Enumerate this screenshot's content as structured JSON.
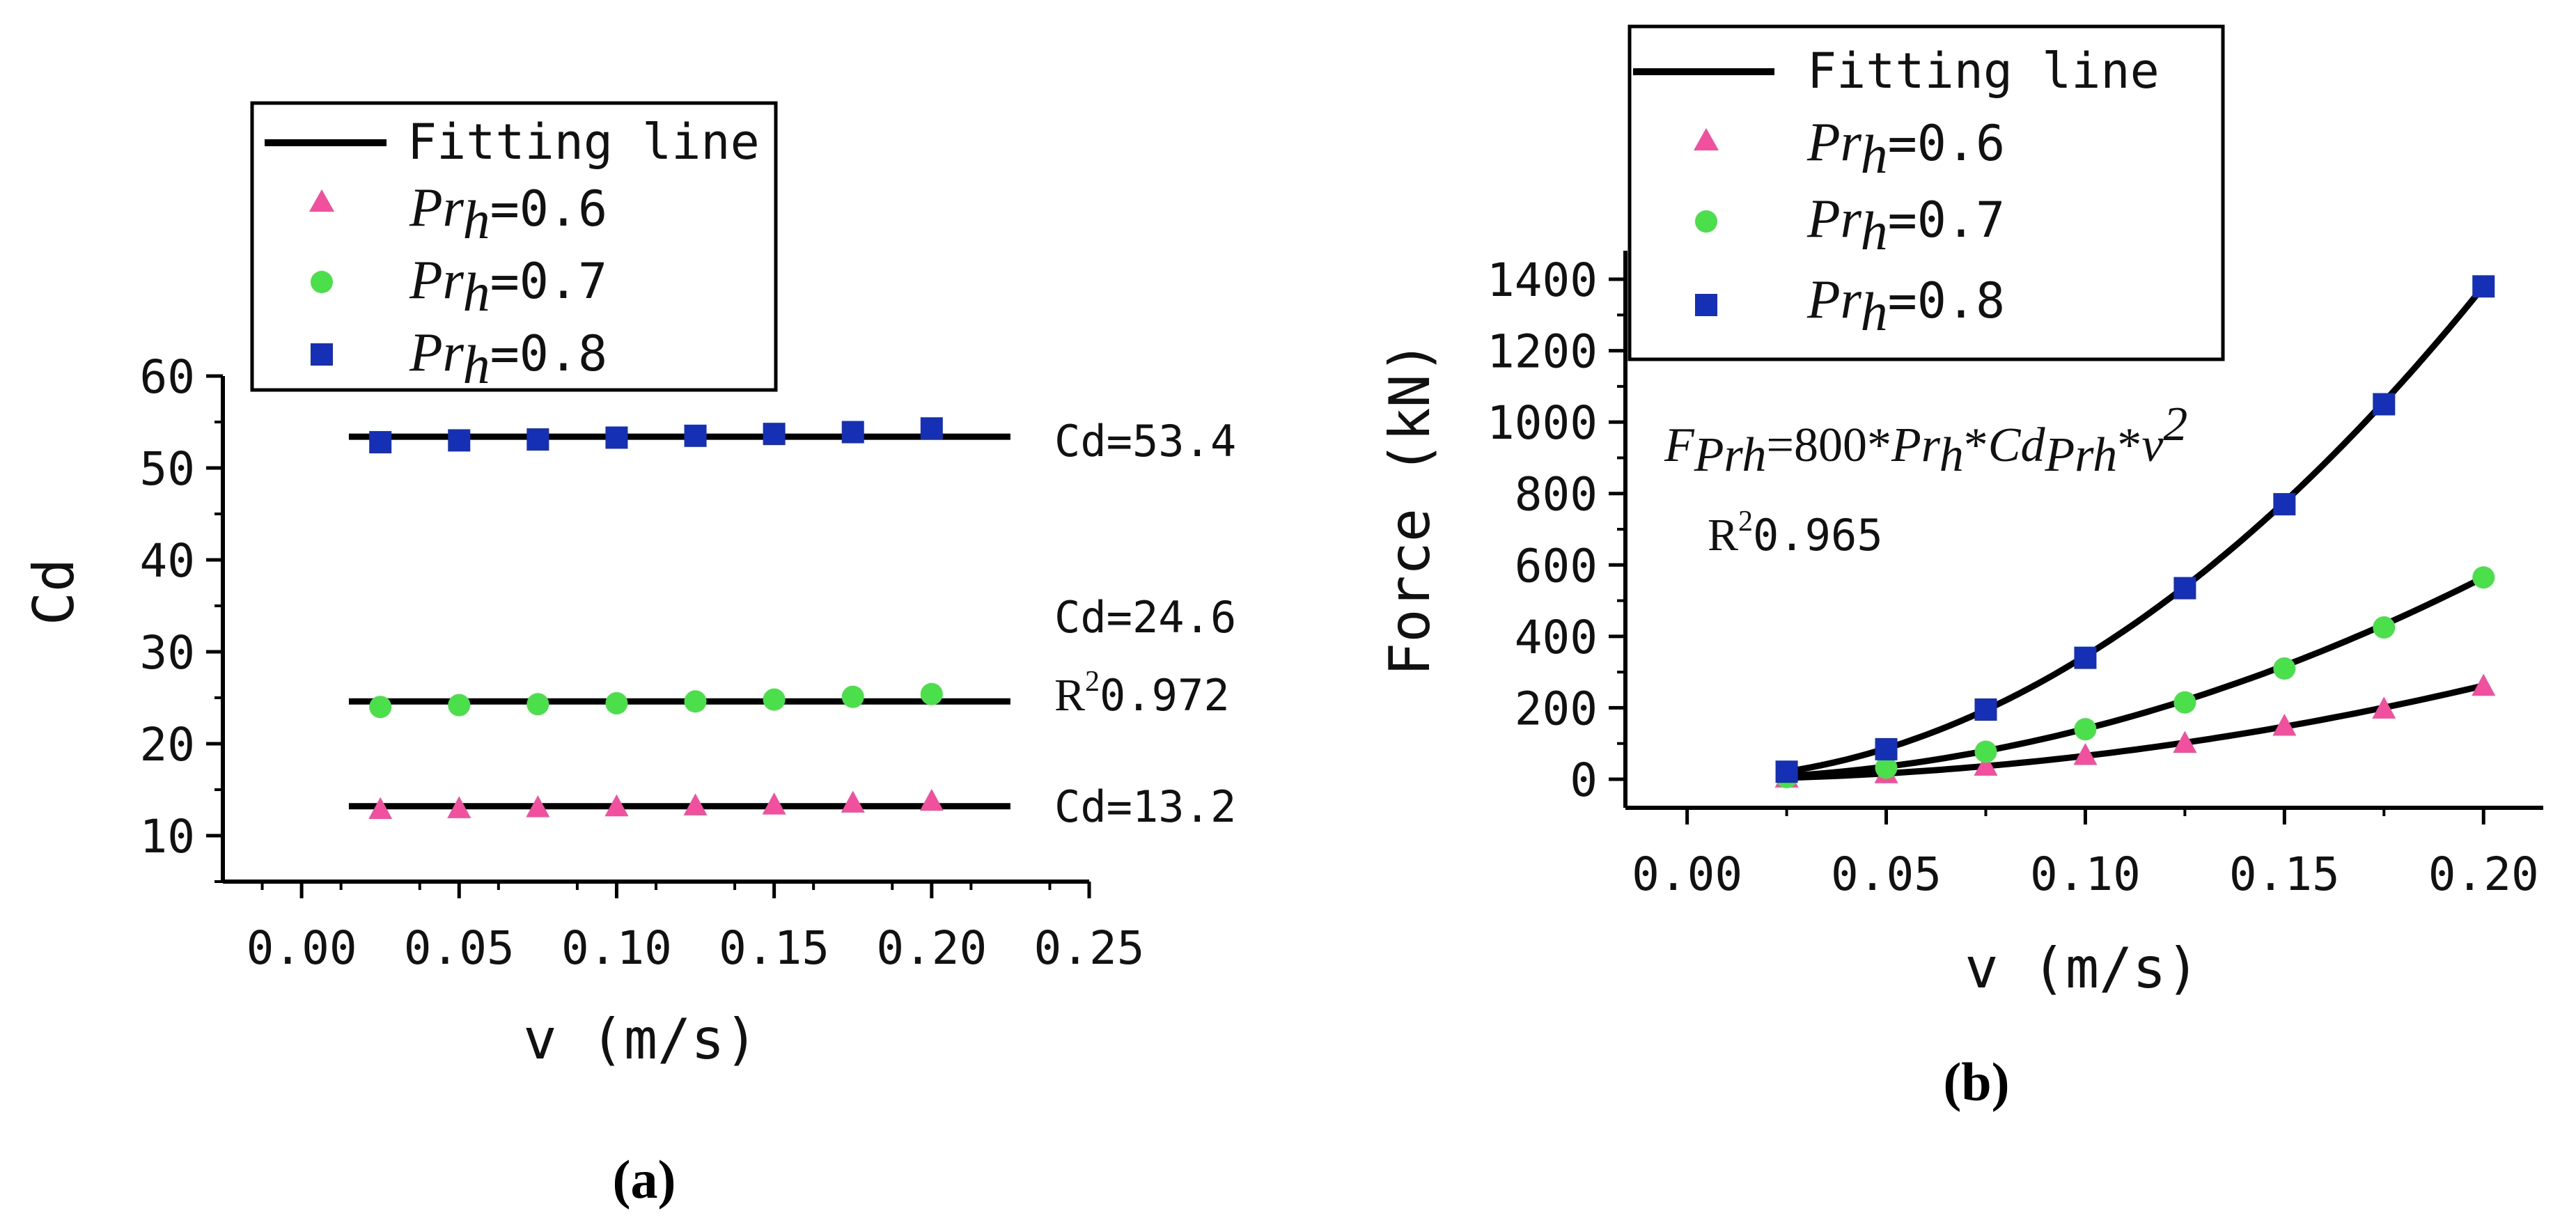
{
  "chart_data": [
    {
      "type": "line",
      "panel_label": "(a)",
      "xlabel": "v (m/s)",
      "ylabel": "Cd",
      "xlim": [
        -0.025,
        0.25
      ],
      "ylim": [
        5,
        60
      ],
      "xticks": [
        "0.00",
        "0.05",
        "0.10",
        "0.15",
        "0.20",
        "0.25"
      ],
      "yticks": [
        "10",
        "20",
        "30",
        "40",
        "50",
        "60"
      ],
      "x": [
        0.025,
        0.05,
        0.075,
        0.1,
        0.125,
        0.15,
        0.175,
        0.2
      ],
      "series": [
        {
          "name": "Pr_h=0.6",
          "marker": "triangle",
          "color": "#f1509f",
          "values": [
            12.9,
            13.0,
            13.1,
            13.2,
            13.3,
            13.4,
            13.6,
            13.8
          ]
        },
        {
          "name": "Pr_h=0.7",
          "marker": "circle",
          "color": "#4be04b",
          "values": [
            24.0,
            24.2,
            24.3,
            24.4,
            24.6,
            24.8,
            25.1,
            25.4
          ]
        },
        {
          "name": "Pr_h=0.8",
          "marker": "square",
          "color": "#1530b4",
          "values": [
            52.8,
            53.0,
            53.1,
            53.3,
            53.5,
            53.7,
            53.9,
            54.3
          ]
        }
      ],
      "fit_lines": [
        {
          "value": 53.4,
          "label": "Cd=53.4"
        },
        {
          "value": 24.6,
          "label": "Cd=24.6"
        },
        {
          "value": 13.2,
          "label": "Cd=13.2"
        }
      ],
      "fit_range": [
        0.015,
        0.225
      ],
      "r2_label": "0.972",
      "legend": {
        "fit_label": "Fitting line",
        "entries": [
          {
            "sym": "Pr",
            "sub": "h",
            "val": "=0.6"
          },
          {
            "sym": "Pr",
            "sub": "h",
            "val": "=0.7"
          },
          {
            "sym": "Pr",
            "sub": "h",
            "val": "=0.8"
          }
        ]
      }
    },
    {
      "type": "line",
      "panel_label": "(b)",
      "xlabel": "v (m/s)",
      "ylabel": "Force (kN)",
      "xlim": [
        -0.0155,
        0.215
      ],
      "ylim": [
        -80,
        1480
      ],
      "xticks": [
        "0.00",
        "0.05",
        "0.10",
        "0.15",
        "0.20"
      ],
      "yticks": [
        "0",
        "200",
        "400",
        "600",
        "800",
        "1000",
        "1200",
        "1400"
      ],
      "x": [
        0.025,
        0.05,
        0.075,
        0.1,
        0.125,
        0.15,
        0.175,
        0.2
      ],
      "series": [
        {
          "name": "Pr_h=0.6",
          "marker": "triangle",
          "color": "#f1509f",
          "Cd": 13.2,
          "Pr": 0.6,
          "values": [
            5,
            17,
            38,
            68,
            102,
            150,
            198,
            262
          ]
        },
        {
          "name": "Pr_h=0.7",
          "marker": "circle",
          "color": "#4be04b",
          "Cd": 24.6,
          "Pr": 0.7,
          "values": [
            6,
            32,
            77,
            140,
            215,
            310,
            425,
            565
          ]
        },
        {
          "name": "Pr_h=0.8",
          "marker": "square",
          "color": "#1530b4",
          "Cd": 53.4,
          "Pr": 0.8,
          "values": [
            21,
            84,
            195,
            340,
            535,
            770,
            1050,
            1380
          ]
        }
      ],
      "equation": {
        "F": "F",
        "F_sub": "Prh",
        "mid1": "=800*",
        "Pr": "Pr",
        "Pr_sub": "h",
        "mid2": "*",
        "Cd": "Cd",
        "Cd_sub": "Prh",
        "mid3": "*",
        "v": "v",
        "exp": "2"
      },
      "r2_label": "0.965",
      "legend": {
        "fit_label": "Fitting line",
        "entries": [
          {
            "sym": "Pr",
            "sub": "h",
            "val": "=0.6"
          },
          {
            "sym": "Pr",
            "sub": "h",
            "val": "=0.7"
          },
          {
            "sym": "Pr",
            "sub": "h",
            "val": "=0.8"
          }
        ]
      }
    }
  ]
}
